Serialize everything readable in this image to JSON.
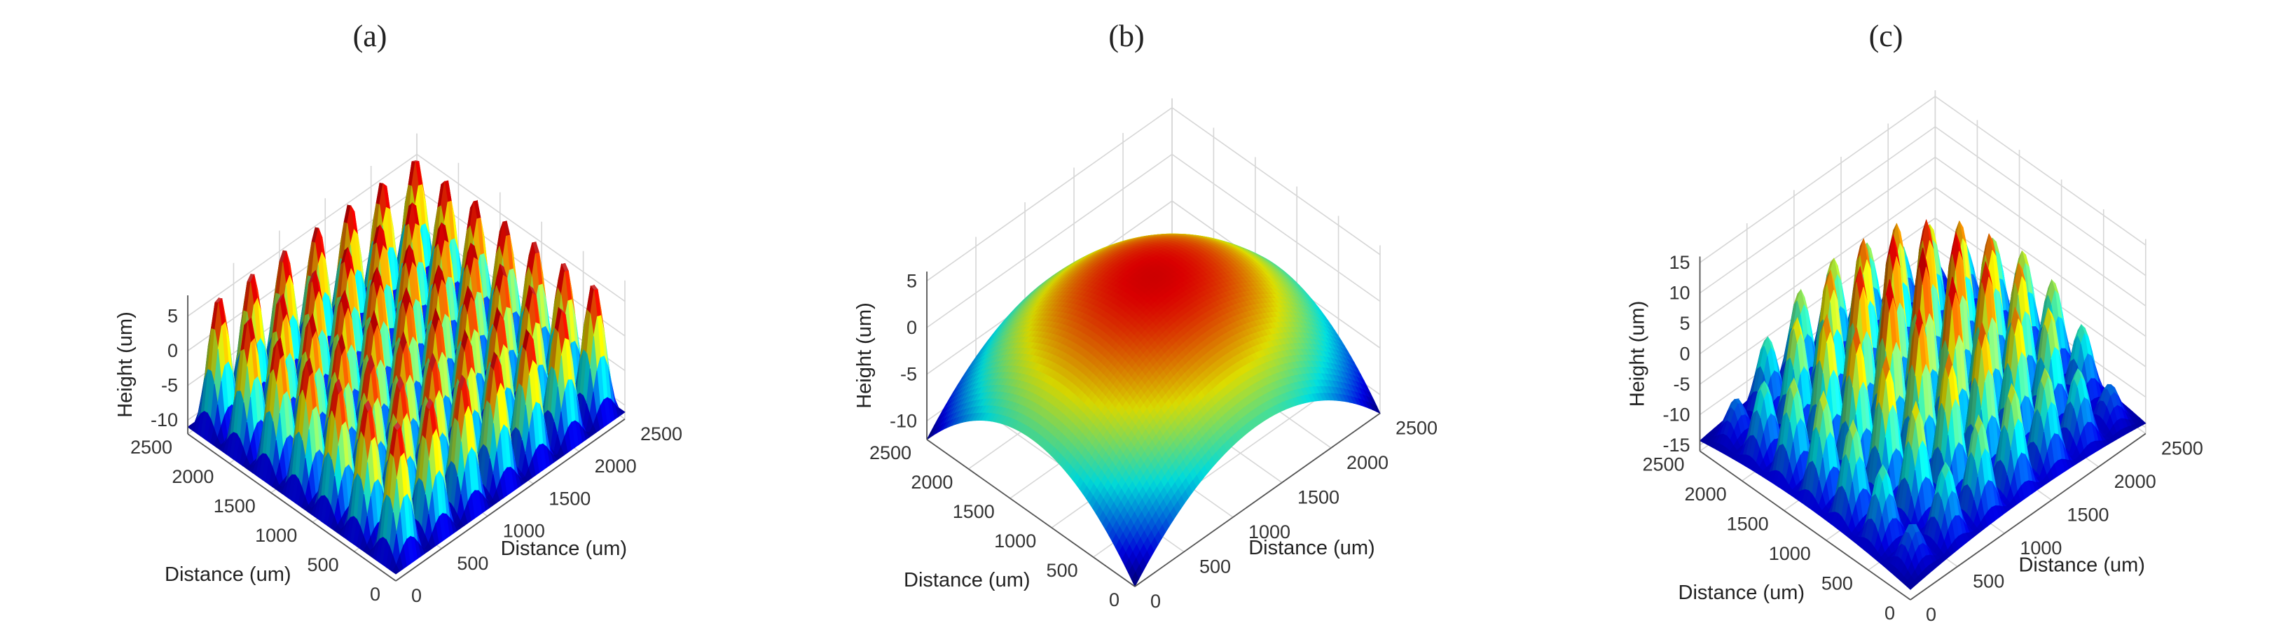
{
  "chart_data": [
    {
      "type": "surface",
      "panel_label": "(a)",
      "xlabel": "Distance (um)",
      "ylabel": "Distance (um)",
      "zlabel": "Height (um)",
      "xlim": [
        0,
        2500
      ],
      "ylim": [
        0,
        2500
      ],
      "zlim": [
        -12,
        8
      ],
      "x_ticks": [
        0,
        500,
        1000,
        1500,
        2000,
        2500
      ],
      "y_ticks": [
        0,
        500,
        1000,
        1500,
        2000,
        2500
      ],
      "z_ticks": [
        -10,
        -5,
        0,
        5
      ],
      "surface": "periodic array of domed peaks, about 7 x 7 across the field, heights about -12 to 8 um",
      "colormap": "jet"
    },
    {
      "type": "surface",
      "panel_label": "(b)",
      "xlabel": "Distance (um)",
      "ylabel": "Distance (um)",
      "zlabel": "Height (um)",
      "xlim": [
        0,
        2500
      ],
      "ylim": [
        0,
        2500
      ],
      "zlim": [
        -12,
        6
      ],
      "x_ticks": [
        0,
        500,
        1000,
        1500,
        2000,
        2500
      ],
      "y_ticks": [
        0,
        500,
        1000,
        1500,
        2000,
        2500
      ],
      "z_ticks": [
        -10,
        -5,
        0,
        5
      ],
      "surface": "single smooth paraboloid dome, maximum about 4 um at the center, falling to about -12 um at the corners",
      "colormap": "jet"
    },
    {
      "type": "surface",
      "panel_label": "(c)",
      "xlabel": "Distance (um)",
      "ylabel": "Distance (um)",
      "zlabel": "Height (um)",
      "xlim": [
        0,
        2500
      ],
      "ylim": [
        0,
        2500
      ],
      "zlim": [
        -16,
        16
      ],
      "x_ticks": [
        0,
        500,
        1000,
        1500,
        2000,
        2500
      ],
      "y_ticks": [
        0,
        500,
        1000,
        1500,
        2000,
        2500
      ],
      "z_ticks": [
        -15,
        -10,
        -5,
        0,
        5,
        10,
        15
      ],
      "surface": "periodic array of peaks on a dome envelope, about 7 x 7, heights about -15 to 14 um, highest in the center",
      "colormap": "jet"
    }
  ]
}
